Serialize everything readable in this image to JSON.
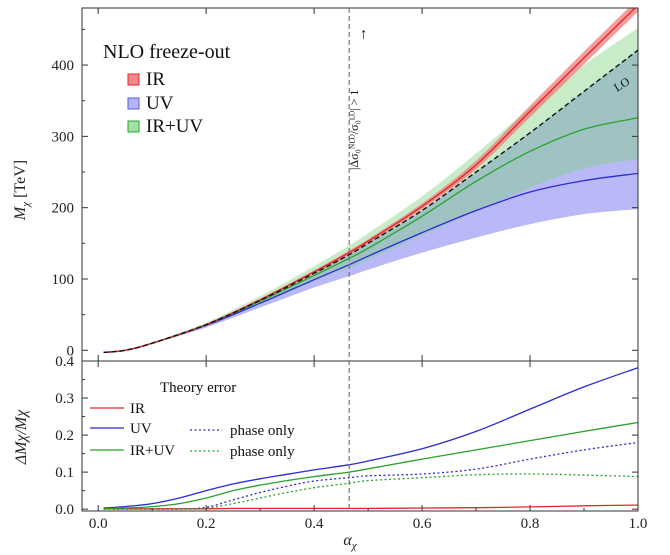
{
  "chart_data": [
    {
      "type": "line",
      "panel": "top",
      "title": "NLO freeze-out",
      "xlabel": "",
      "ylabel_main": "M",
      "ylabel_sub": "χ",
      "ylabel_unit": "[TeV]",
      "xlim": [
        -0.03,
        1.0
      ],
      "ylim": [
        -15,
        480
      ],
      "yticks": [
        0,
        100,
        200,
        300,
        400
      ],
      "xticks": [
        0.0,
        0.2,
        0.4,
        0.6,
        0.8,
        1.0
      ],
      "vline": 0.465,
      "vline_annotation": "|Δσ₀ᴺᴸᴼ/σ₀ᴸᴼ| > 1",
      "vline_arrow": "→",
      "lo_label": "LO",
      "legend": [
        "IR",
        "UV",
        "IR+UV"
      ],
      "colors": {
        "IR": "#e8262a",
        "UV": "#2b2bd6",
        "IRUV": "#29a329",
        "LO": "#111111"
      },
      "x": [
        0.01,
        0.05,
        0.1,
        0.2,
        0.3,
        0.4,
        0.465,
        0.5,
        0.6,
        0.7,
        0.8,
        0.9,
        1.0
      ],
      "series": [
        {
          "name": "LO",
          "values": [
            -3,
            0,
            10,
            36,
            70,
            108,
            134,
            150,
            196,
            250,
            305,
            363,
            421
          ]
        },
        {
          "name": "IR",
          "values": [
            -3,
            0,
            10,
            36,
            71,
            110,
            137,
            153,
            202,
            260,
            335,
            410,
            484
          ]
        },
        {
          "name": "UV",
          "values": [
            -3,
            0,
            10,
            35,
            66,
            99,
            120,
            132,
            165,
            196,
            222,
            238,
            248
          ]
        },
        {
          "name": "IR+UV",
          "values": [
            -3,
            0,
            10,
            36,
            69,
            105,
            129,
            143,
            188,
            237,
            279,
            310,
            326
          ]
        }
      ],
      "bands": [
        {
          "name": "UV",
          "lower": [
            -3,
            0,
            9,
            32,
            60,
            88,
            104,
            113,
            137,
            158,
            177,
            191,
            198
          ],
          "upper": [
            -3,
            0,
            10,
            36,
            70,
            108,
            134,
            150,
            196,
            250,
            305,
            363,
            421
          ]
        },
        {
          "name": "IR+UV",
          "lower": [
            -3,
            0,
            9,
            34,
            64,
            97,
            116,
            127,
            161,
            195,
            228,
            255,
            268
          ],
          "upper": [
            -3,
            0,
            11,
            39,
            76,
            118,
            147,
            164,
            216,
            276,
            340,
            400,
            452
          ]
        },
        {
          "name": "IR",
          "lower": [
            -3,
            0,
            10,
            36,
            70,
            108,
            134,
            150,
            198,
            254,
            327,
            401,
            475
          ],
          "upper": [
            -3,
            0,
            10,
            36,
            72,
            112,
            140,
            156,
            206,
            266,
            343,
            419,
            493
          ]
        }
      ]
    },
    {
      "type": "line",
      "panel": "bottom",
      "title": "Theory error",
      "xlabel": "α",
      "xlabel_sub": "χ",
      "ylabel": "ΔMχ/Mχ",
      "xlim": [
        -0.03,
        1.0
      ],
      "ylim": [
        -0.005,
        0.4
      ],
      "yticks": [
        0.0,
        0.1,
        0.2,
        0.3,
        0.4
      ],
      "ytick_labels": [
        "0.0",
        "0.1",
        "0.2",
        "0.3",
        "0.4"
      ],
      "xticks": [
        0.0,
        0.2,
        0.4,
        0.6,
        0.8,
        1.0
      ],
      "xtick_labels": [
        "0.0",
        "0.2",
        "0.4",
        "0.6",
        "0.8",
        "1.0"
      ],
      "legend": [
        "IR",
        "UV",
        "IR+UV",
        "phase  only",
        "phase only"
      ],
      "x": [
        0.01,
        0.05,
        0.1,
        0.15,
        0.2,
        0.25,
        0.3,
        0.35,
        0.4,
        0.465,
        0.5,
        0.6,
        0.7,
        0.8,
        0.9,
        1.0
      ],
      "series": [
        {
          "name": "IR",
          "values": [
            0.001,
            0.001,
            0.001,
            0.001,
            0.001,
            0.002,
            0.002,
            0.002,
            0.002,
            0.002,
            0.002,
            0.003,
            0.004,
            0.006,
            0.009,
            0.011
          ]
        },
        {
          "name": "UV",
          "values": [
            0.003,
            0.007,
            0.015,
            0.03,
            0.05,
            0.068,
            0.082,
            0.094,
            0.106,
            0.12,
            0.13,
            0.163,
            0.21,
            0.27,
            0.33,
            0.382
          ]
        },
        {
          "name": "IR+UV",
          "values": [
            0.001,
            0.003,
            0.007,
            0.015,
            0.03,
            0.05,
            0.065,
            0.077,
            0.088,
            0.1,
            0.109,
            0.135,
            0.16,
            0.185,
            0.21,
            0.234
          ]
        },
        {
          "name": "UV phase only",
          "values": [
            0.0,
            0.0,
            0.0,
            0.0,
            0.005,
            0.025,
            0.045,
            0.062,
            0.076,
            0.085,
            0.09,
            0.095,
            0.108,
            0.135,
            0.16,
            0.18
          ]
        },
        {
          "name": "IR+UV phase only",
          "values": [
            0.0,
            0.0,
            0.0,
            0.0,
            0.002,
            0.015,
            0.03,
            0.045,
            0.058,
            0.07,
            0.077,
            0.085,
            0.093,
            0.095,
            0.092,
            0.088
          ]
        }
      ]
    }
  ]
}
